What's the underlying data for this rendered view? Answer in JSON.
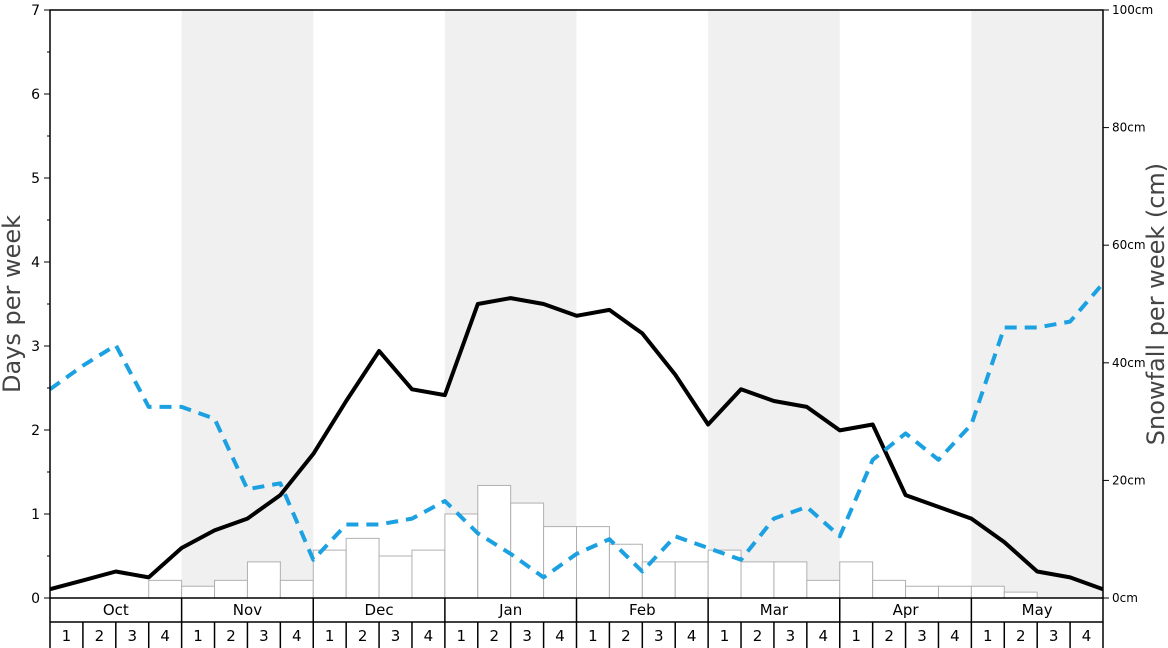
{
  "chart_data": {
    "type": "bar",
    "months": [
      "Oct",
      "Nov",
      "Dec",
      "Jan",
      "Feb",
      "Mar",
      "Apr",
      "May"
    ],
    "week_labels": [
      "1",
      "2",
      "3",
      "4"
    ],
    "left_axis": {
      "label": "Days per week",
      "ylim": [
        0,
        7
      ],
      "ticks": [
        "0",
        "1",
        "2",
        "3",
        "4",
        "5",
        "6",
        "7"
      ]
    },
    "right_axis": {
      "label": "Snowfall per week (cm)",
      "ylim": [
        0,
        100
      ],
      "ticks": [
        "0cm",
        "20cm",
        "40cm",
        "60cm",
        "80cm",
        "100cm"
      ]
    },
    "series": [
      {
        "kind": "bar",
        "axis": "left",
        "values": [
          0,
          0,
          0,
          0.21,
          0.14,
          0.21,
          0.43,
          0.21,
          0.57,
          0.71,
          0.5,
          0.57,
          1.0,
          1.34,
          1.13,
          0.85,
          0.85,
          0.64,
          0.43,
          0.43,
          0.57,
          0.43,
          0.43,
          0.21,
          0.43,
          0.21,
          0.14,
          0.14,
          0.14,
          0.07,
          0,
          0
        ]
      },
      {
        "kind": "line",
        "axis": "right",
        "style": "solid",
        "color": "#000000",
        "values": [
          1.5,
          3.0,
          4.5,
          3.5,
          8.5,
          11.5,
          13.5,
          17.5,
          24.5,
          33.5,
          42.0,
          35.5,
          34.5,
          50.0,
          51.0,
          50.0,
          48.0,
          49.0,
          45.0,
          38.0,
          29.5,
          35.5,
          33.5,
          32.5,
          28.5,
          29.5,
          17.5,
          15.5,
          13.5,
          9.5,
          4.5,
          3.5,
          1.5
        ]
      },
      {
        "kind": "line",
        "axis": "right",
        "style": "dashed",
        "color": "#1ba1e2",
        "values": [
          35.5,
          39.5,
          43.0,
          32.5,
          32.5,
          30.5,
          18.5,
          19.5,
          6.5,
          12.5,
          12.5,
          13.5,
          16.5,
          11.0,
          7.5,
          3.5,
          7.5,
          10.0,
          4.5,
          10.5,
          8.5,
          6.5,
          13.5,
          15.5,
          10.5,
          23.5,
          28.0,
          23.5,
          29.5,
          46.0,
          46.0,
          47.0,
          53.5
        ]
      }
    ]
  }
}
